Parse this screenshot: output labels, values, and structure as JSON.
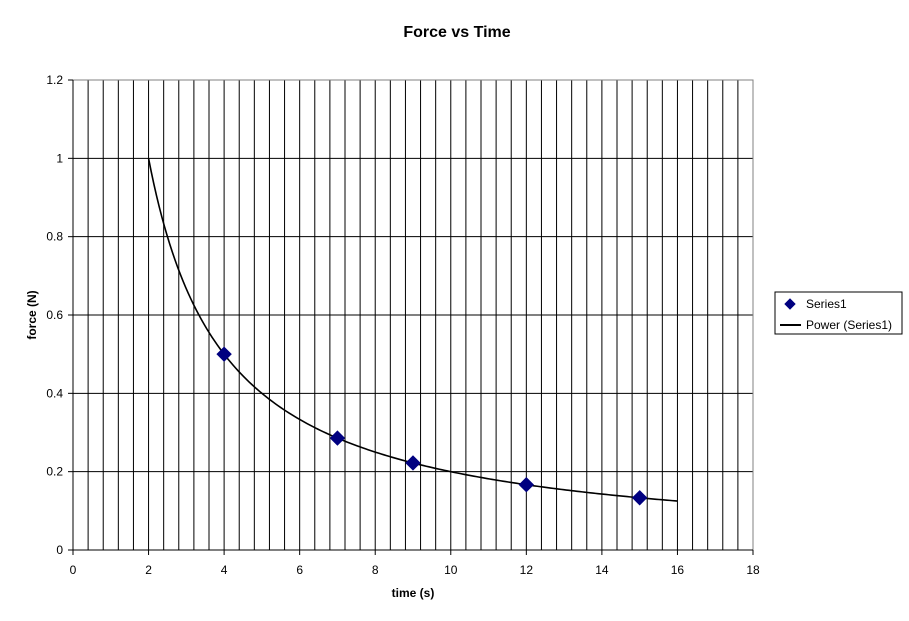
{
  "chart_data": {
    "type": "scatter",
    "title": "Force vs Time",
    "xlabel": "time (s)",
    "ylabel": "force (N)",
    "xlim": [
      0,
      18
    ],
    "ylim": [
      0,
      1.2
    ],
    "x_ticks": [
      0,
      2,
      4,
      6,
      8,
      10,
      12,
      14,
      16,
      18
    ],
    "y_ticks": [
      0,
      0.2,
      0.4,
      0.6,
      0.8,
      1,
      1.2
    ],
    "x_minor_step": 0.4,
    "grid": true,
    "legend_position": "right",
    "series": [
      {
        "name": "Series1",
        "kind": "scatter",
        "marker": "diamond",
        "color": "#000080",
        "x": [
          4,
          7,
          9,
          12,
          15
        ],
        "y": [
          0.5,
          0.2857,
          0.2222,
          0.1667,
          0.1333
        ]
      },
      {
        "name": "Power (Series1)",
        "kind": "trendline",
        "trend_type": "power",
        "equation": {
          "a": 2,
          "b": -1
        },
        "x_range": [
          2,
          16
        ],
        "color": "#000000"
      }
    ]
  }
}
